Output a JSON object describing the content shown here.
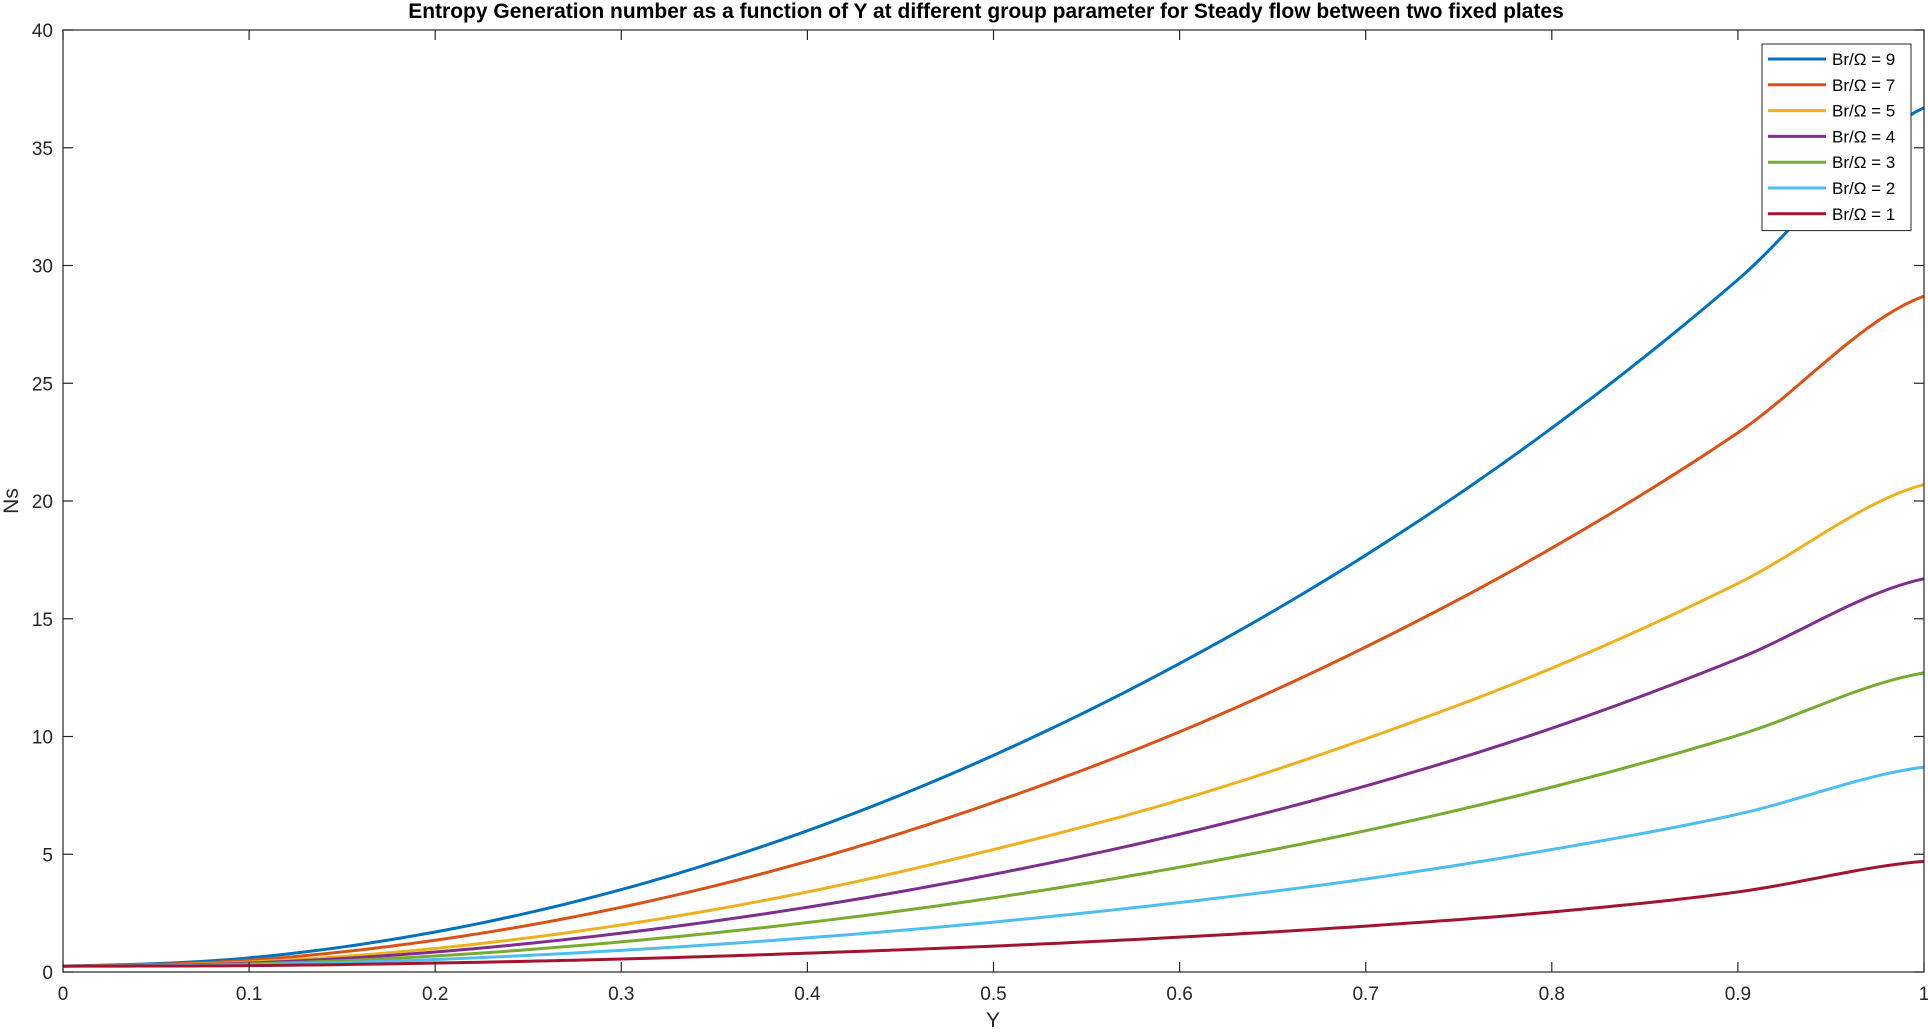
{
  "chart_data": {
    "type": "line",
    "title": "Entropy Generation number as a function of Y at different group parameter for Steady flow between two fixed  plates",
    "xlabel": "Y",
    "ylabel": "Ns",
    "xlim": [
      0,
      1
    ],
    "ylim": [
      0,
      40
    ],
    "xticks": [
      0,
      0.1,
      0.2,
      0.3,
      0.4,
      0.5,
      0.6,
      0.7,
      0.8,
      0.9,
      1
    ],
    "xtick_labels": [
      "0",
      "0.1",
      "0.2",
      "0.3",
      "0.4",
      "0.5",
      "0.6",
      "0.7",
      "0.8",
      "0.9",
      "1"
    ],
    "yticks": [
      0,
      5,
      10,
      15,
      20,
      25,
      30,
      35,
      40
    ],
    "ytick_labels": [
      "0",
      "5",
      "10",
      "15",
      "20",
      "25",
      "30",
      "35",
      "40"
    ],
    "grid": false,
    "legend_position": "top-right",
    "x": [
      0,
      0.1,
      0.2,
      0.3,
      0.4,
      0.5,
      0.6,
      0.7,
      0.8,
      0.9,
      1
    ],
    "series": [
      {
        "name": "Br/Ω = 9",
        "color": "#0072BD",
        "values": [
          0.25,
          0.6,
          1.7,
          3.5,
          6.0,
          9.2,
          13.1,
          17.7,
          23.1,
          29.4,
          36.7
        ]
      },
      {
        "name": "Br/Ω = 7",
        "color": "#D95319",
        "values": [
          0.25,
          0.5,
          1.35,
          2.75,
          4.7,
          7.2,
          10.2,
          13.8,
          18.0,
          22.9,
          28.7
        ]
      },
      {
        "name": "Br/Ω = 5",
        "color": "#EDB120",
        "values": [
          0.25,
          0.42,
          1.0,
          2.0,
          3.4,
          5.2,
          7.3,
          9.9,
          12.9,
          16.5,
          20.7
        ]
      },
      {
        "name": "Br/Ω = 4",
        "color": "#7E2F8E",
        "values": [
          0.25,
          0.38,
          0.85,
          1.65,
          2.75,
          4.15,
          5.85,
          7.9,
          10.35,
          13.3,
          16.7
        ]
      },
      {
        "name": "Br/Ω = 3",
        "color": "#77AC30",
        "values": [
          0.25,
          0.34,
          0.68,
          1.28,
          2.1,
          3.15,
          4.45,
          6.0,
          7.85,
          10.05,
          12.7
        ]
      },
      {
        "name": "Br/Ω = 2",
        "color": "#4DBEEE",
        "values": [
          0.25,
          0.31,
          0.53,
          0.92,
          1.45,
          2.12,
          2.95,
          3.95,
          5.2,
          6.7,
          8.7
        ]
      },
      {
        "name": "Br/Ω = 1",
        "color": "#A2142F",
        "values": [
          0.25,
          0.27,
          0.38,
          0.55,
          0.8,
          1.1,
          1.48,
          1.95,
          2.55,
          3.4,
          4.7
        ]
      }
    ]
  }
}
